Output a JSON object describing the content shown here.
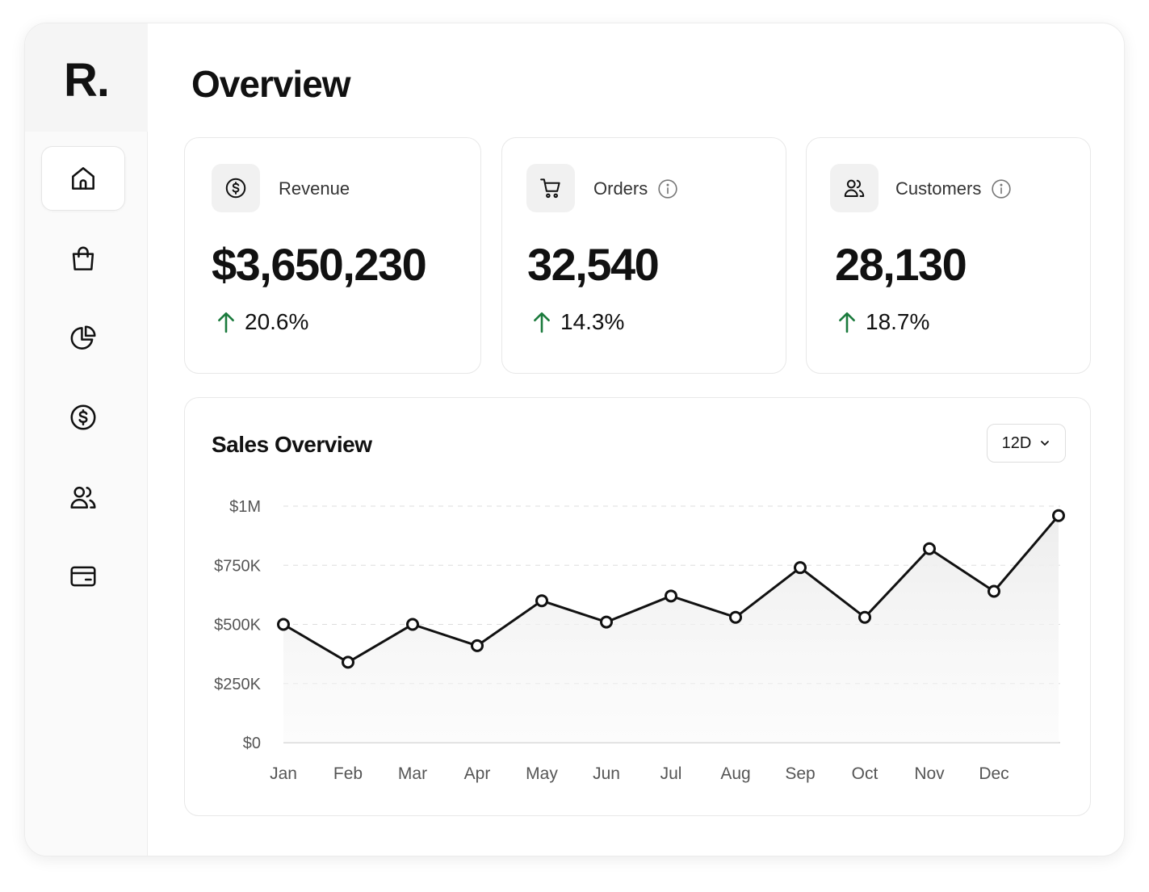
{
  "app": {
    "logo": "R."
  },
  "sidebar": {
    "items": [
      {
        "name": "home",
        "icon": "home-icon",
        "active": true
      },
      {
        "name": "shop",
        "icon": "shopping-bag-icon",
        "active": false
      },
      {
        "name": "analytics",
        "icon": "pie-chart-icon",
        "active": false
      },
      {
        "name": "finance",
        "icon": "dollar-circle-icon",
        "active": false
      },
      {
        "name": "customers",
        "icon": "users-icon",
        "active": false
      },
      {
        "name": "cards",
        "icon": "wallet-icon",
        "active": false
      }
    ]
  },
  "header": {
    "title": "Overview"
  },
  "kpis": [
    {
      "label": "Revenue",
      "icon": "dollar-circle-icon",
      "info": false,
      "value": "$3,650,230",
      "change": "20.6%"
    },
    {
      "label": "Orders",
      "icon": "shopping-cart-icon",
      "info": true,
      "value": "32,540",
      "change": "14.3%"
    },
    {
      "label": "Customers",
      "icon": "users-icon",
      "info": true,
      "value": "28,130",
      "change": "18.7%"
    }
  ],
  "colors": {
    "positive": "#1a7a3c",
    "line": "#111111",
    "grid": "#dddddd"
  },
  "sales": {
    "title": "Sales Overview",
    "range": "12D"
  },
  "chart_data": {
    "type": "line",
    "categories": [
      "Jan",
      "Feb",
      "Mar",
      "Apr",
      "May",
      "Jun",
      "Jul",
      "Aug",
      "Sep",
      "Oct",
      "Nov",
      "Dec"
    ],
    "values": [
      500000,
      340000,
      500000,
      410000,
      600000,
      510000,
      620000,
      530000,
      740000,
      530000,
      820000,
      640000
    ],
    "last_value": 960000,
    "y_ticks": [
      {
        "value": 1000000,
        "label": "$1M"
      },
      {
        "value": 750000,
        "label": "$750K"
      },
      {
        "value": 500000,
        "label": "$500K"
      },
      {
        "value": 250000,
        "label": "$250K"
      },
      {
        "value": 0,
        "label": "$0"
      }
    ],
    "ylim": [
      0,
      1000000
    ],
    "grid": true,
    "area_fill": true
  }
}
